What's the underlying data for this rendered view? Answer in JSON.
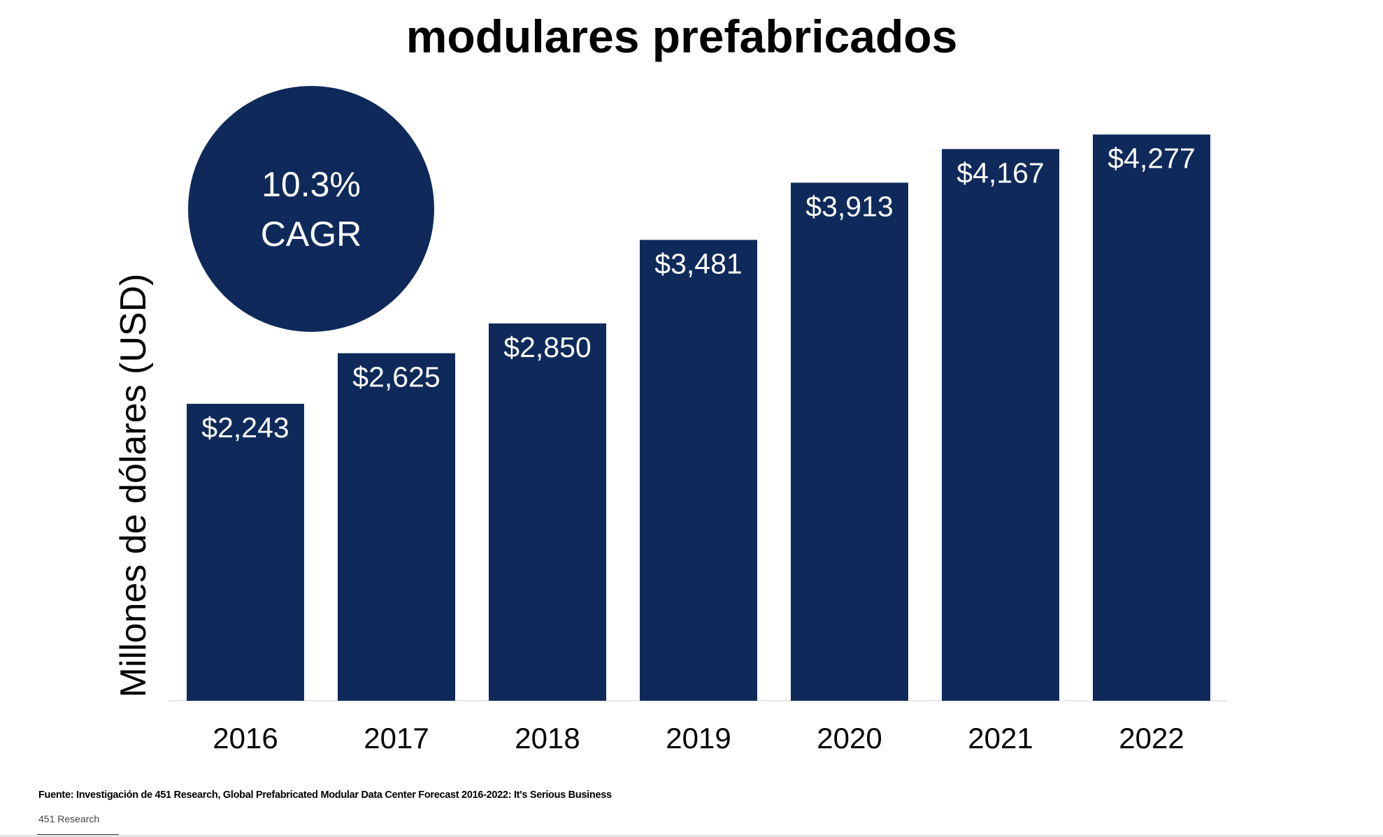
{
  "colors": {
    "bar": "#0f2a5a",
    "badge": "#0f2a5a",
    "baseline": "#e8e8e8",
    "text": "#000000",
    "bar_label": "#ffffff"
  },
  "badge": {
    "line1": "10.3%",
    "line2": "CAGR"
  },
  "footer": {
    "source": "Fuente: Investigación de 451 Research, Global Prefabricated Modular Data Center Forecast 2016-2022: It's Serious Business",
    "credit": "451 Research"
  },
  "chart_data": {
    "type": "bar",
    "title": "modulares prefabricados",
    "xlabel": "",
    "ylabel": "Millones de dólares (USD)",
    "categories": [
      "2016",
      "2017",
      "2018",
      "2019",
      "2020",
      "2021",
      "2022"
    ],
    "values": [
      2243,
      2625,
      2850,
      3481,
      3913,
      4167,
      4277
    ],
    "data_labels": [
      "$2,243",
      "$2,625",
      "$2,850",
      "$3,481",
      "$3,913",
      "$4,167",
      "$4,277"
    ],
    "ylim": [
      0,
      4277
    ],
    "grid": false,
    "legend": "none",
    "annotations": [
      "10.3% CAGR"
    ]
  }
}
